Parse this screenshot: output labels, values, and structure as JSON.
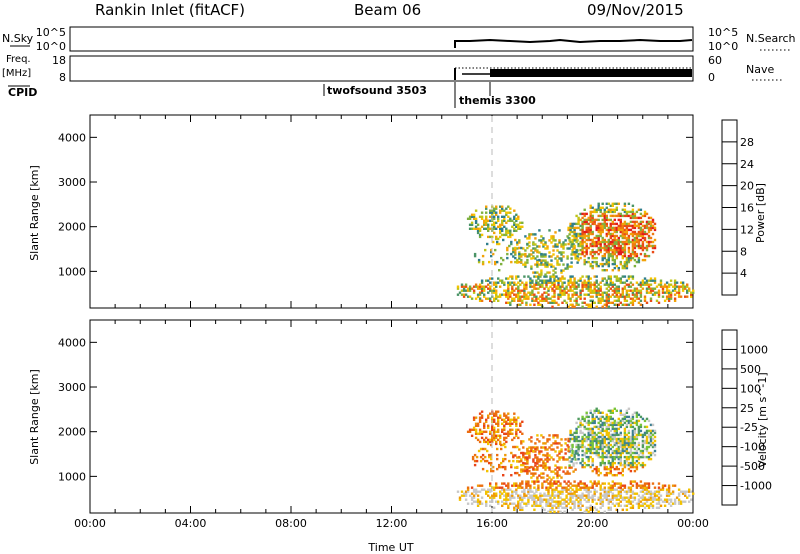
{
  "header": {
    "station": "Rankin Inlet (fitACF)",
    "beam": "Beam 06",
    "date": "09/Nov/2015"
  },
  "status_panels": {
    "nsky_label": "N.Sky",
    "nsky_ticks": [
      "10^5",
      "10^0"
    ],
    "nsearch_label": "N.Search",
    "nsearch_ticks": [
      "10^5",
      "10^0"
    ],
    "freq_label_line1": "Freq.",
    "freq_label_line2": "[MHz]",
    "freq_ticks": [
      "18",
      "8"
    ],
    "nave_label": "Nave",
    "nave_ticks": [
      "60",
      "0"
    ],
    "cpid_label": "CPID",
    "cpid_names": [
      "themis 3300",
      "twofsound 3503"
    ]
  },
  "power_colorbar": {
    "label": "Power [dB]",
    "ticks": [
      "28",
      "24",
      "20",
      "16",
      "12",
      "8",
      "4"
    ],
    "colors": [
      "#1a14e6",
      "#1f4fb0",
      "#2f7e8c",
      "#4a9466",
      "#7fb13e",
      "#bfc419",
      "#f5c400",
      "#f2a20a",
      "#ee7a10",
      "#e94a16",
      "#e31a1c"
    ]
  },
  "velocity_colorbar": {
    "label": "Velocity [m s^-1]",
    "ticks": [
      "1000",
      "500",
      "100",
      "25",
      "-25",
      "-100",
      "-500",
      "-1000"
    ],
    "colors": [
      "#1a14e6",
      "#2a55b3",
      "#3c7f92",
      "#4f9a5f",
      "#78c53a",
      "#c8c8c8",
      "#f2c200",
      "#ef9a08",
      "#ec6f10",
      "#e94418",
      "#e31a1c"
    ]
  },
  "chart_data": [
    {
      "type": "heatmap",
      "name": "power",
      "ylabel": "Slant Range [km]",
      "ylim": [
        180,
        4500
      ],
      "y_ticks": [
        "4000",
        "3000",
        "2000",
        "1000"
      ],
      "xlim": [
        0,
        24
      ],
      "x_ticks": [
        "00:00",
        "04:00",
        "08:00",
        "12:00",
        "16:00",
        "20:00",
        "00:00"
      ],
      "data_start_hour": 14.6,
      "data_end_hour": 24,
      "colorbar_range": [
        0,
        30
      ]
    },
    {
      "type": "heatmap",
      "name": "velocity",
      "ylabel": "Slant Range [km]",
      "xlabel": "Time UT",
      "ylim": [
        180,
        4500
      ],
      "y_ticks": [
        "4000",
        "3000",
        "2000",
        "1000"
      ],
      "xlim": [
        0,
        24
      ],
      "x_ticks": [
        "00:00",
        "04:00",
        "08:00",
        "12:00",
        "16:00",
        "20:00",
        "00:00"
      ],
      "data_start_hour": 14.6,
      "data_end_hour": 24,
      "colorbar_range": [
        -1000,
        1000
      ]
    }
  ]
}
